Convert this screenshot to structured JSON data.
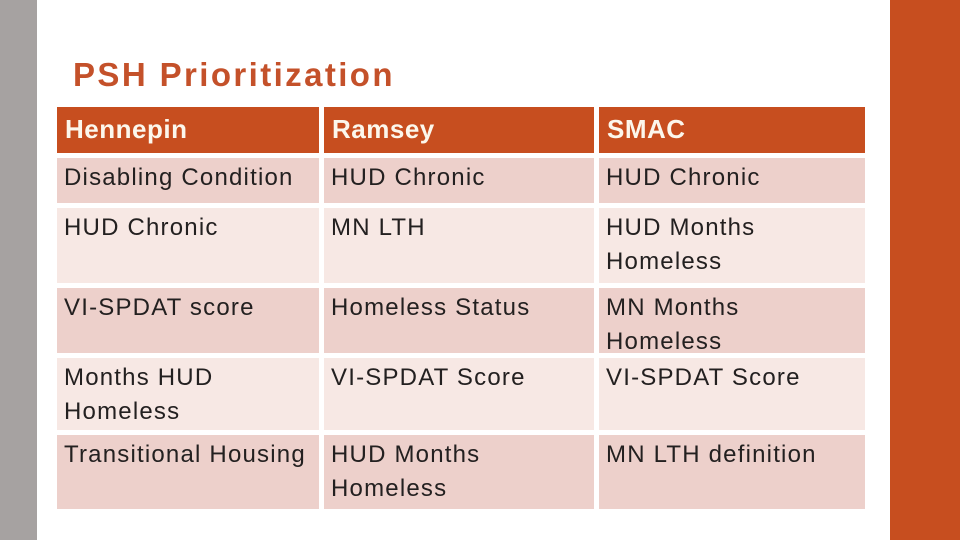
{
  "slide": {
    "title": "PSH Prioritization"
  },
  "table": {
    "headers": [
      "Hennepin",
      "Ramsey",
      "SMAC"
    ],
    "rows": [
      [
        "Disabling Condition",
        "HUD Chronic",
        "HUD Chronic"
      ],
      [
        "HUD Chronic",
        "MN LTH",
        "HUD Months\nHomeless"
      ],
      [
        "VI-SPDAT score",
        "Homeless Status",
        "MN Months\nHomeless"
      ],
      [
        "Months HUD\nHomeless",
        "VI-SPDAT Score",
        "VI-SPDAT Score"
      ],
      [
        "Transitional Housing",
        "HUD Months\nHomeless",
        "MN LTH definition"
      ]
    ]
  },
  "colors": {
    "accent_orange": "#C74E1F",
    "title_orange": "#C4512A",
    "row_odd_pink": "#EDD0CB",
    "row_even_pink": "#F7E8E4",
    "side_bar_gray": "#A6A2A1",
    "header_text": "#FCF7EC",
    "body_text": "#232020"
  }
}
